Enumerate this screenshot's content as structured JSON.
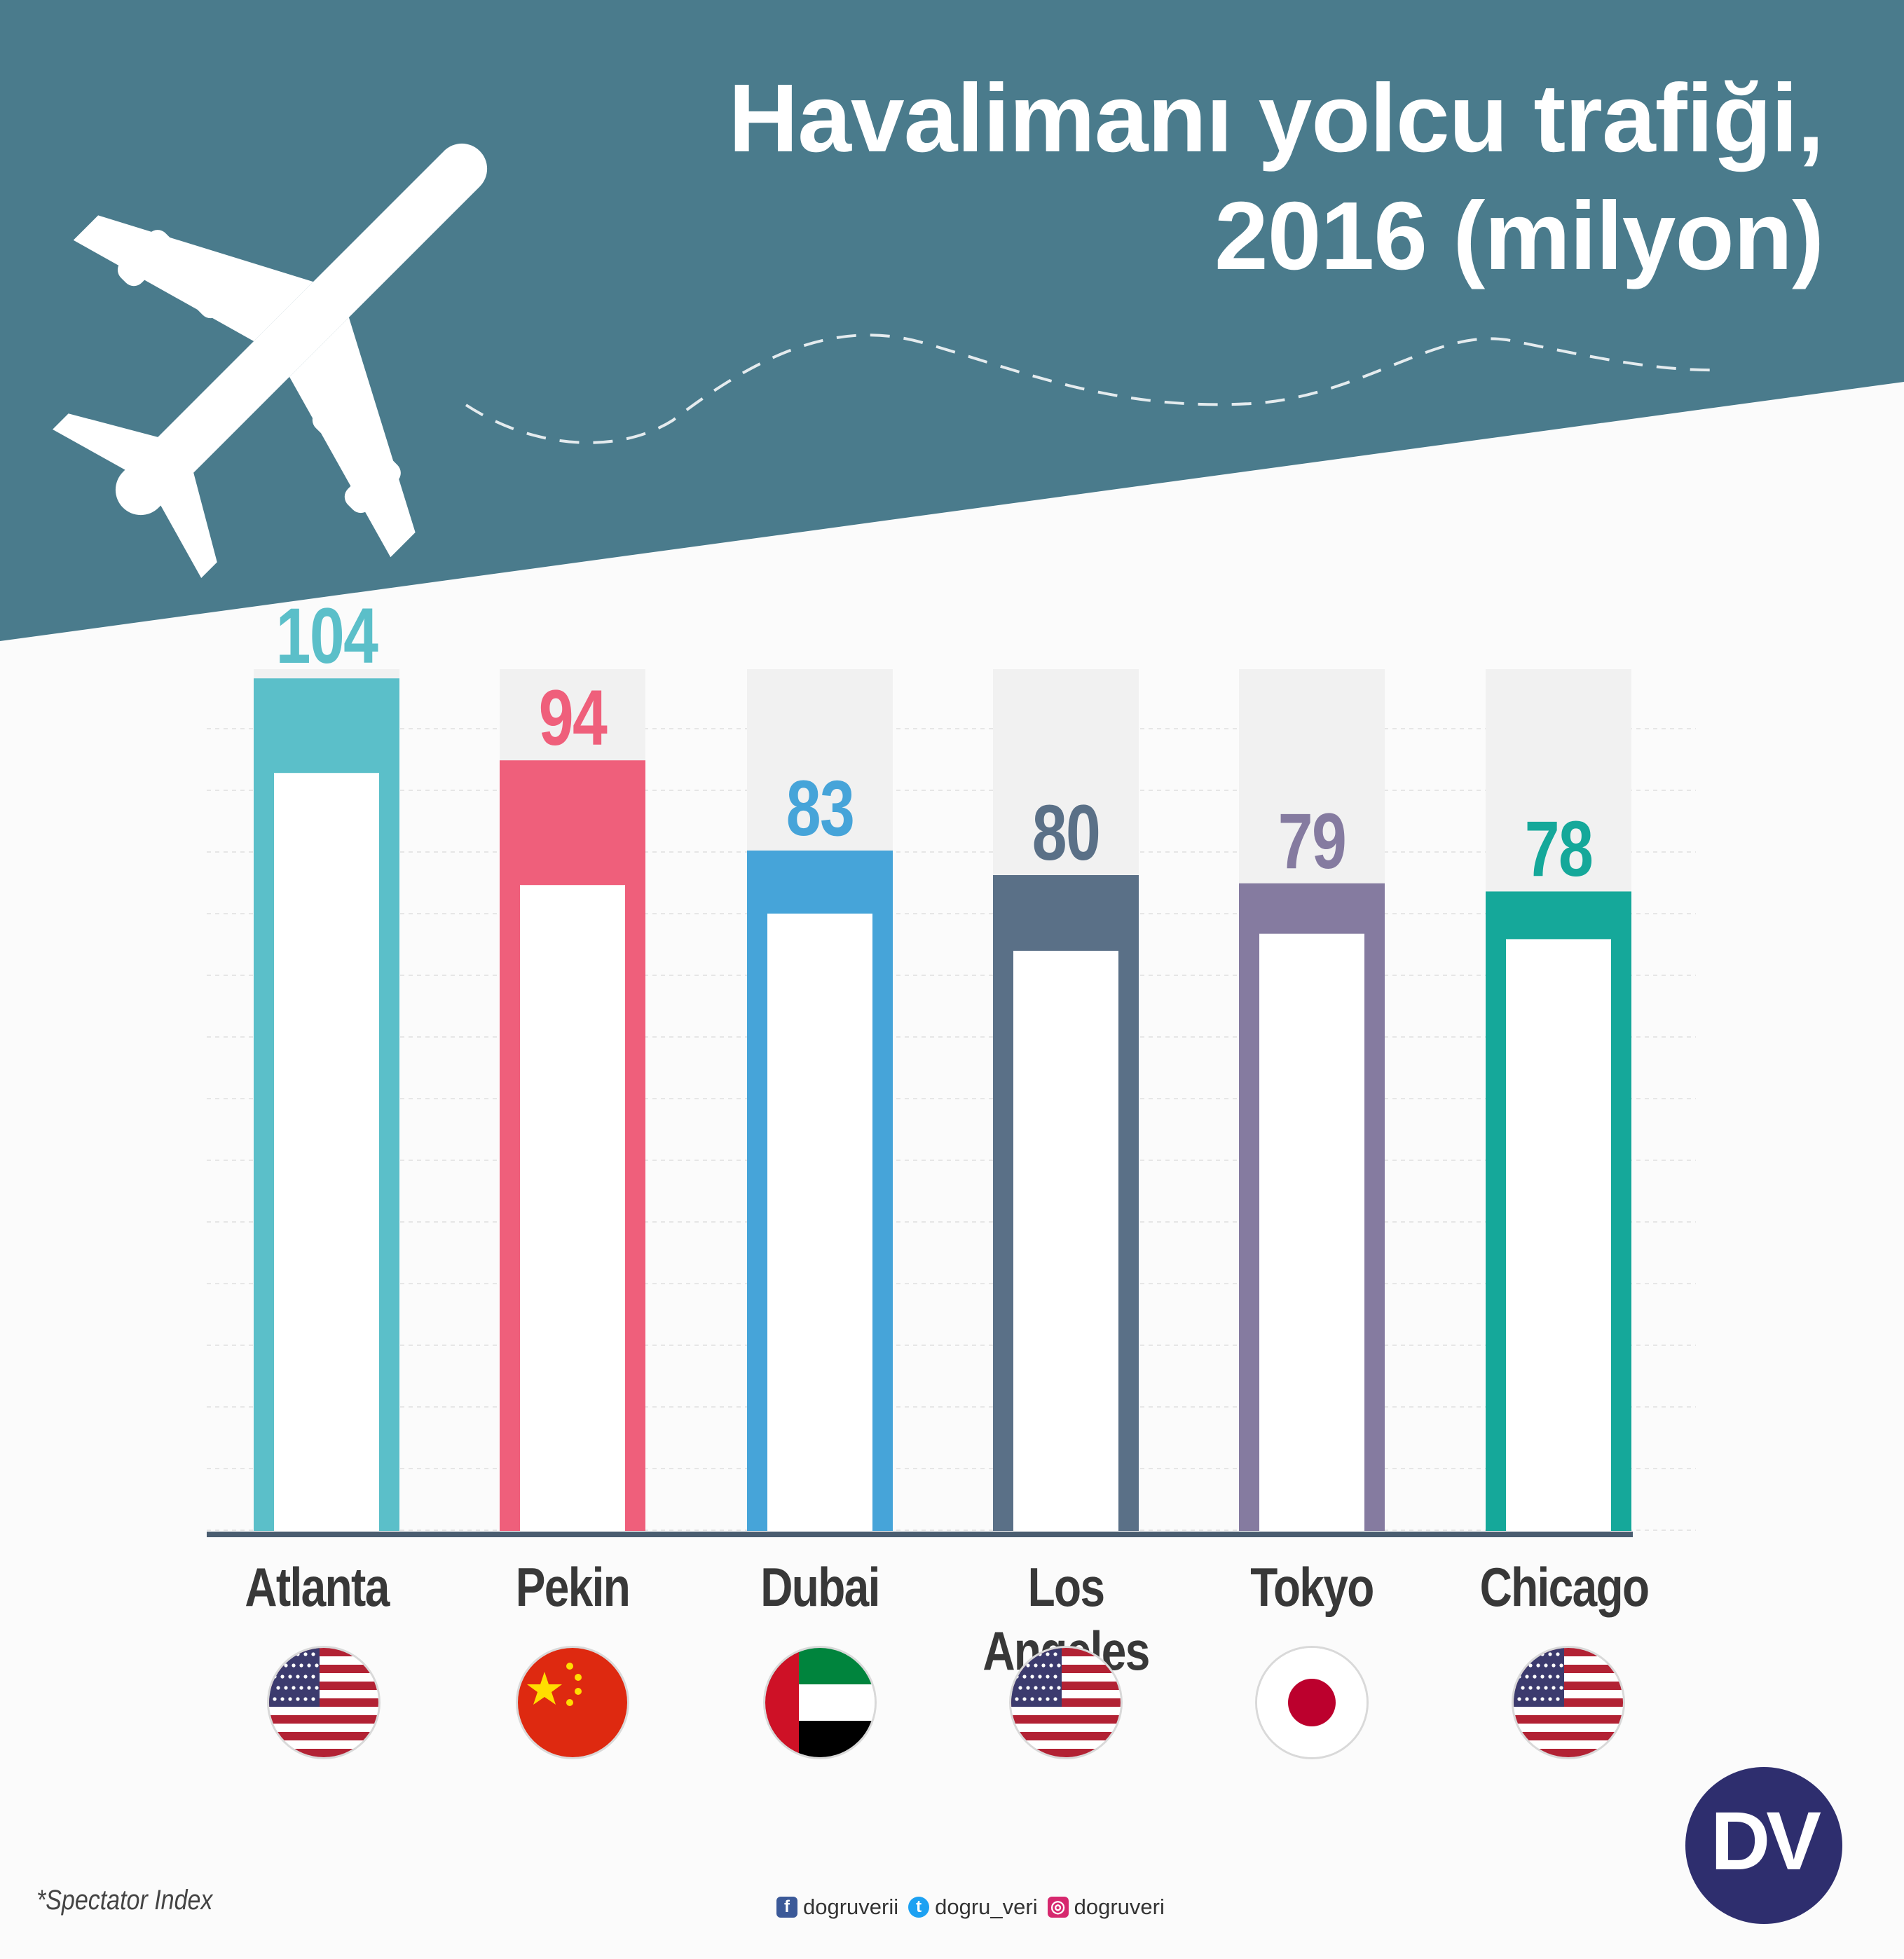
{
  "title_line1": "Havalimanı yolcu trafiği,",
  "title_line2": "2016 (milyon)",
  "chart_data": {
    "type": "bar",
    "categories": [
      "Atlanta",
      "Pekin",
      "Dubai",
      "Los Angeles",
      "Tokyo",
      "Chicago"
    ],
    "values": [
      104,
      94,
      83,
      80,
      79,
      78
    ],
    "value_labels": [
      "104",
      "94",
      "83",
      "80",
      "79",
      "78"
    ],
    "flags": [
      "usa-flag-icon",
      "china-flag-icon",
      "uae-flag-icon",
      "usa-flag-icon",
      "japan-flag-icon",
      "usa-flag-icon"
    ],
    "colors": [
      "#5bbfc9",
      "#ef5f7b",
      "#46a4d9",
      "#5a7087",
      "#857ba0",
      "#15a89a"
    ],
    "grid": true,
    "legend": "none"
  },
  "colors": {
    "header": "#4a7b8c",
    "axis": "#4a5d70",
    "logo": "#2e2e6e"
  },
  "source": "*Spectator Index",
  "social": {
    "facebook": "dogruverii",
    "twitter": "dogru_veri",
    "instagram": "dogruveri"
  },
  "logo_text": "DV"
}
